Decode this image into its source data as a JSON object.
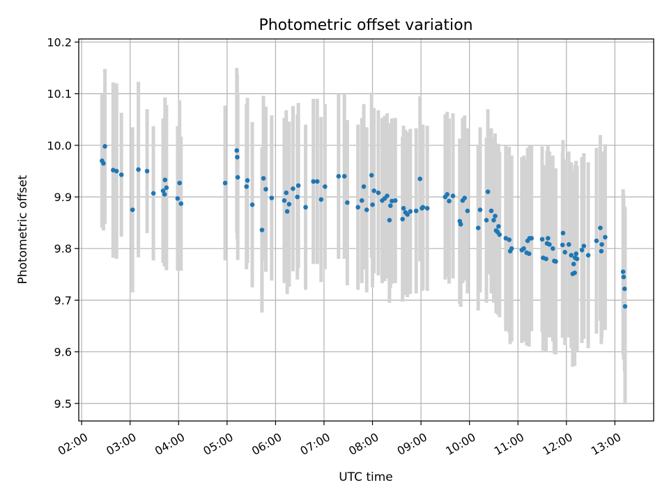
{
  "chart_data": {
    "type": "scatter",
    "title": "Photometric offset variation",
    "xlabel": "UTC time",
    "ylabel": "Photometric offset",
    "xlim": [
      1.94,
      13.8
    ],
    "ylim": [
      9.466,
      10.206
    ],
    "xticks": [
      {
        "value": 2,
        "label": "02:00"
      },
      {
        "value": 3,
        "label": "03:00"
      },
      {
        "value": 4,
        "label": "04:00"
      },
      {
        "value": 5,
        "label": "05:00"
      },
      {
        "value": 6,
        "label": "06:00"
      },
      {
        "value": 7,
        "label": "07:00"
      },
      {
        "value": 8,
        "label": "08:00"
      },
      {
        "value": 9,
        "label": "09:00"
      },
      {
        "value": 10,
        "label": "10:00"
      },
      {
        "value": 11,
        "label": "11:00"
      },
      {
        "value": 12,
        "label": "12:00"
      },
      {
        "value": 13,
        "label": "13:00"
      }
    ],
    "yticks": [
      {
        "value": 9.5,
        "label": "9.5"
      },
      {
        "value": 9.6,
        "label": "9.6"
      },
      {
        "value": 9.7,
        "label": "9.7"
      },
      {
        "value": 9.8,
        "label": "9.8"
      },
      {
        "value": 9.9,
        "label": "9.9"
      },
      {
        "value": 10.0,
        "label": "10.0"
      },
      {
        "value": 10.1,
        "label": "10.1"
      },
      {
        "value": 10.2,
        "label": "10.2"
      }
    ],
    "grid": true,
    "series": [
      {
        "name": "photometric offset",
        "marker_color": "#1f77b4",
        "errorbar_color": "#d3d3d3",
        "x_unit": "hours UTC",
        "points": [
          [
            2.42,
            9.97,
            0.13
          ],
          [
            2.45,
            9.965,
            0.13
          ],
          [
            2.48,
            9.998,
            0.15
          ],
          [
            2.65,
            9.952,
            0.17
          ],
          [
            2.72,
            9.95,
            0.17
          ],
          [
            2.82,
            9.943,
            0.12
          ],
          [
            3.05,
            9.875,
            0.16
          ],
          [
            3.17,
            9.953,
            0.17
          ],
          [
            3.35,
            9.95,
            0.12
          ],
          [
            3.48,
            9.907,
            0.13
          ],
          [
            3.68,
            9.912,
            0.14
          ],
          [
            3.71,
            9.905,
            0.14
          ],
          [
            3.72,
            9.933,
            0.16
          ],
          [
            3.75,
            9.918,
            0.16
          ],
          [
            3.98,
            9.897,
            0.14
          ],
          [
            4.02,
            9.927,
            0.16
          ],
          [
            4.05,
            9.887,
            0.13
          ],
          [
            4.96,
            9.927,
            0.15
          ],
          [
            5.2,
            9.99,
            0.16
          ],
          [
            5.21,
            9.977,
            0.16
          ],
          [
            5.22,
            9.938,
            0.16
          ],
          [
            5.4,
            9.92,
            0.16
          ],
          [
            5.42,
            9.932,
            0.16
          ],
          [
            5.52,
            9.885,
            0.16
          ],
          [
            5.72,
            9.836,
            0.16
          ],
          [
            5.75,
            9.936,
            0.16
          ],
          [
            5.8,
            9.915,
            0.16
          ],
          [
            5.92,
            9.898,
            0.16
          ],
          [
            6.18,
            9.893,
            0.16
          ],
          [
            6.22,
            9.908,
            0.16
          ],
          [
            6.24,
            9.872,
            0.16
          ],
          [
            6.28,
            9.886,
            0.16
          ],
          [
            6.36,
            9.916,
            0.16
          ],
          [
            6.45,
            9.9,
            0.16
          ],
          [
            6.47,
            9.922,
            0.16
          ],
          [
            6.62,
            9.88,
            0.16
          ],
          [
            6.78,
            9.93,
            0.16
          ],
          [
            6.86,
            9.93,
            0.16
          ],
          [
            6.94,
            9.895,
            0.16
          ],
          [
            7.02,
            9.92,
            0.16
          ],
          [
            7.3,
            9.94,
            0.16
          ],
          [
            7.42,
            9.94,
            0.16
          ],
          [
            7.48,
            9.889,
            0.16
          ],
          [
            7.7,
            9.88,
            0.16
          ],
          [
            7.78,
            9.893,
            0.16
          ],
          [
            7.82,
            9.92,
            0.16
          ],
          [
            7.88,
            9.875,
            0.16
          ],
          [
            7.98,
            9.942,
            0.16
          ],
          [
            8.0,
            9.885,
            0.16
          ],
          [
            8.03,
            9.912,
            0.16
          ],
          [
            8.12,
            9.908,
            0.16
          ],
          [
            8.2,
            9.893,
            0.16
          ],
          [
            8.25,
            9.897,
            0.16
          ],
          [
            8.3,
            9.902,
            0.16
          ],
          [
            8.35,
            9.855,
            0.16
          ],
          [
            8.37,
            9.883,
            0.16
          ],
          [
            8.4,
            9.892,
            0.16
          ],
          [
            8.47,
            9.893,
            0.16
          ],
          [
            8.62,
            9.857,
            0.16
          ],
          [
            8.64,
            9.878,
            0.16
          ],
          [
            8.68,
            9.87,
            0.16
          ],
          [
            8.72,
            9.866,
            0.16
          ],
          [
            8.78,
            9.872,
            0.16
          ],
          [
            8.9,
            9.873,
            0.16
          ],
          [
            8.98,
            9.935,
            0.16
          ],
          [
            9.02,
            9.878,
            0.16
          ],
          [
            9.04,
            9.88,
            0.16
          ],
          [
            9.13,
            9.878,
            0.16
          ],
          [
            9.5,
            9.9,
            0.16
          ],
          [
            9.54,
            9.905,
            0.16
          ],
          [
            9.58,
            9.892,
            0.16
          ],
          [
            9.66,
            9.902,
            0.16
          ],
          [
            9.8,
            9.853,
            0.16
          ],
          [
            9.82,
            9.847,
            0.16
          ],
          [
            9.86,
            9.893,
            0.16
          ],
          [
            9.9,
            9.898,
            0.16
          ],
          [
            9.96,
            9.873,
            0.16
          ],
          [
            10.18,
            9.84,
            0.16
          ],
          [
            10.22,
            9.875,
            0.16
          ],
          [
            10.35,
            9.855,
            0.16
          ],
          [
            10.38,
            9.91,
            0.16
          ],
          [
            10.45,
            9.873,
            0.16
          ],
          [
            10.5,
            9.855,
            0.16
          ],
          [
            10.53,
            9.863,
            0.16
          ],
          [
            10.55,
            9.835,
            0.16
          ],
          [
            10.58,
            9.832,
            0.16
          ],
          [
            10.6,
            9.843,
            0.16
          ],
          [
            10.62,
            9.827,
            0.16
          ],
          [
            10.75,
            9.82,
            0.18
          ],
          [
            10.82,
            9.817,
            0.18
          ],
          [
            10.84,
            9.795,
            0.18
          ],
          [
            10.87,
            9.8,
            0.18
          ],
          [
            11.08,
            9.797,
            0.18
          ],
          [
            11.12,
            9.8,
            0.18
          ],
          [
            11.18,
            9.792,
            0.18
          ],
          [
            11.2,
            9.815,
            0.18
          ],
          [
            11.23,
            9.79,
            0.18
          ],
          [
            11.24,
            9.82,
            0.18
          ],
          [
            11.28,
            9.82,
            0.18
          ],
          [
            11.5,
            9.818,
            0.18
          ],
          [
            11.52,
            9.782,
            0.18
          ],
          [
            11.58,
            9.78,
            0.18
          ],
          [
            11.6,
            9.81,
            0.18
          ],
          [
            11.62,
            9.82,
            0.18
          ],
          [
            11.65,
            9.808,
            0.18
          ],
          [
            11.72,
            9.8,
            0.18
          ],
          [
            11.75,
            9.776,
            0.18
          ],
          [
            11.78,
            9.775,
            0.18
          ],
          [
            11.92,
            9.807,
            0.18
          ],
          [
            11.93,
            9.83,
            0.18
          ],
          [
            11.97,
            9.793,
            0.18
          ],
          [
            12.05,
            9.808,
            0.18
          ],
          [
            12.1,
            9.787,
            0.18
          ],
          [
            12.13,
            9.751,
            0.18
          ],
          [
            12.15,
            9.77,
            0.18
          ],
          [
            12.17,
            9.753,
            0.18
          ],
          [
            12.18,
            9.782,
            0.18
          ],
          [
            12.2,
            9.79,
            0.18
          ],
          [
            12.22,
            9.78,
            0.18
          ],
          [
            12.32,
            9.797,
            0.18
          ],
          [
            12.36,
            9.805,
            0.18
          ],
          [
            12.45,
            9.787,
            0.18
          ],
          [
            12.62,
            9.815,
            0.18
          ],
          [
            12.7,
            9.84,
            0.18
          ],
          [
            12.72,
            9.795,
            0.18
          ],
          [
            12.73,
            9.808,
            0.18
          ],
          [
            12.8,
            9.822,
            0.18
          ],
          [
            13.17,
            9.755,
            0.16
          ],
          [
            13.18,
            9.745,
            0.16
          ],
          [
            13.2,
            9.722,
            0.16
          ],
          [
            13.21,
            9.688,
            0.19
          ]
        ]
      }
    ]
  }
}
